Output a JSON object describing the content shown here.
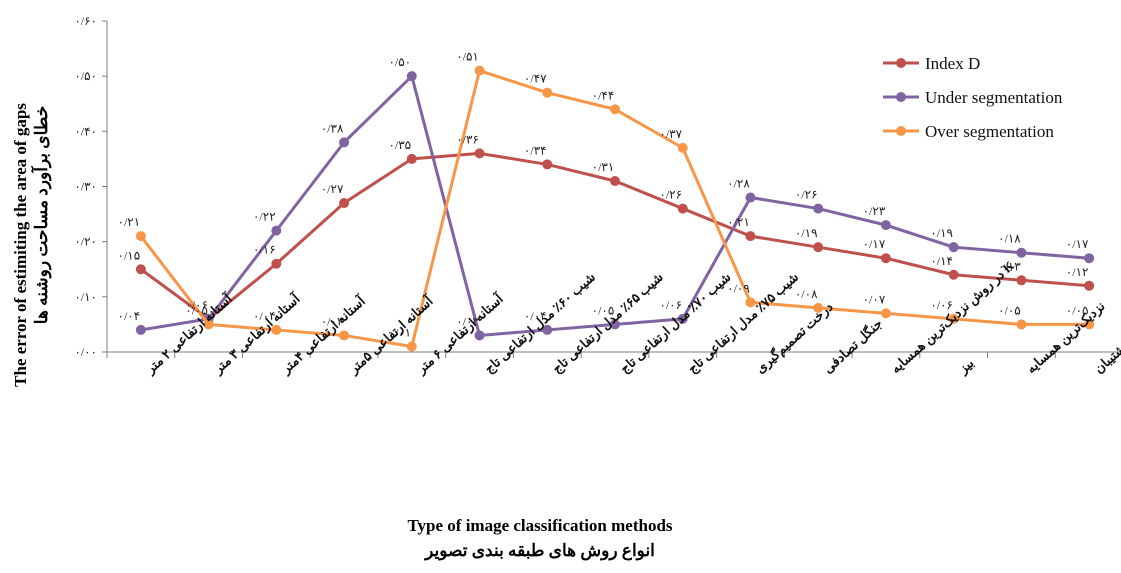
{
  "chart_data": {
    "type": "line",
    "xlabel": "Type of image classification methods",
    "xlabel_fa": "انواع روش های طبقه بندی تصویر",
    "ylabel": "The error of estimiting  the area of gaps",
    "ylabel_fa": "خطای برآورد مساحت روشنه ها",
    "ylim": [
      0,
      0.6
    ],
    "yticks": [
      "۰/۰۰",
      "۰/۱۰",
      "۰/۲۰",
      "۰/۳۰",
      "۰/۴۰",
      "۰/۵۰",
      "۰/۶۰"
    ],
    "categories": [
      "آستانه ارتفاعی ۲ متر",
      "آستانه ارتفاعی ۳ متر",
      "آستانه ارتفاعی ۴متر",
      "آستانه ارتفاعی ۵متر",
      "آستانه ارتفاعی ۶ متر",
      "شیب ۶۰٪ مدل ارتفاعی تاج",
      "شیب ۶۵٪ مدل ارتفاعی تاج",
      "شیب ۷۰٪ مدل ارتفاعی تاج",
      "شیب ۷۵٪ مدل ارتفاعی تاج",
      "درخت تصمیم‌گیری",
      "جنگل تصادفی",
      "K در روش نزدیک‌ترین همسایه",
      "بیز",
      "نزدیک‌ترین همسایه",
      "ماشین بردار پشتیبان"
    ],
    "series": [
      {
        "name": "Index D",
        "color": "#C0504D",
        "values": [
          0.15,
          0.06,
          0.16,
          0.27,
          0.35,
          0.36,
          0.34,
          0.31,
          0.26,
          0.21,
          0.19,
          0.17,
          0.14,
          0.13,
          0.12
        ],
        "labels": [
          "۰/۱۵",
          "",
          "۰/۱۶",
          "۰/۲۷",
          "۰/۳۵",
          "۰/۳۶",
          "۰/۳۴",
          "۰/۳۱",
          "۰/۲۶",
          "۰/۲۱",
          "۰/۱۹",
          "۰/۱۷",
          "۰/۱۴",
          "۰/۱۳",
          "۰/۱۲"
        ]
      },
      {
        "name": "Under segmentation",
        "color": "#8064A2",
        "values": [
          0.04,
          0.06,
          0.22,
          0.38,
          0.5,
          0.03,
          0.04,
          0.05,
          0.06,
          0.28,
          0.26,
          0.23,
          0.19,
          0.18,
          0.17
        ],
        "labels": [
          "۰/۰۴",
          "۰/۰۶",
          "۰/۲۲",
          "۰/۳۸",
          "۰/۵۰",
          "۰/۰۳",
          "۰/۰۴",
          "۰/۰۵",
          "۰/۰۶",
          "۰/۲۸",
          "۰/۲۶",
          "۰/۲۳",
          "۰/۱۹",
          "۰/۱۸",
          "۰/۱۷"
        ]
      },
      {
        "name": "Over segmentation",
        "color": "#F79646",
        "values": [
          0.21,
          0.05,
          0.04,
          0.03,
          0.01,
          0.51,
          0.47,
          0.44,
          0.37,
          0.09,
          0.08,
          0.07,
          0.06,
          0.05,
          0.05
        ],
        "labels": [
          "۰/۲۱",
          "۰/۰۵",
          "۰/۰۴",
          "۰/۰۳",
          "۰/۰۱",
          "۰/۵۱",
          "۰/۴۷",
          "۰/۴۴",
          "۰/۳۷",
          "۰/۰۹",
          "۰/۰۸",
          "۰/۰۷",
          "۰/۰۶",
          "۰/۰۵",
          "۰/۰۵"
        ]
      }
    ],
    "legend_position": "top-right",
    "grid": false
  }
}
